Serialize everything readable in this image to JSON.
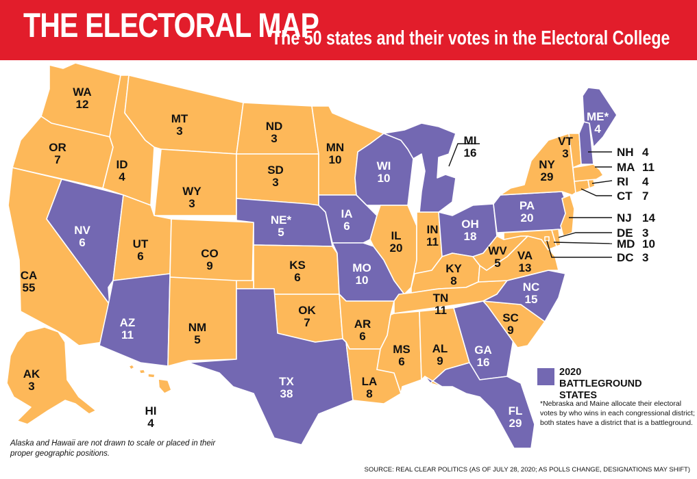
{
  "header": {
    "title": "THE ELECTORAL MAP",
    "subtitle": "The 50 states and their votes in the Electoral College"
  },
  "colors": {
    "header_bg": "#e21d2b",
    "safe_state": "#fdb859",
    "battleground": "#7368b2",
    "border": "#ffffff"
  },
  "legend": {
    "label": "2020 BATTLEGROUND STATES"
  },
  "footnote": "*Nebraska and Maine allocate their electoral votes by who wins in each congressional district; both states have a district that is a battleground.",
  "scale_note": "Alaska and Hawaii are not drawn to scale or placed in their proper geographic positions.",
  "source": "SOURCE: REAL CLEAR POLITICS (AS OF JULY 28, 2020; AS POLLS CHANGE, DESIGNATIONS MAY SHIFT)",
  "states": {
    "WA": {
      "abbr": "WA",
      "votes": "12",
      "battleground": false
    },
    "OR": {
      "abbr": "OR",
      "votes": "7",
      "battleground": false
    },
    "CA": {
      "abbr": "CA",
      "votes": "55",
      "battleground": false
    },
    "NV": {
      "abbr": "NV",
      "votes": "6",
      "battleground": true
    },
    "ID": {
      "abbr": "ID",
      "votes": "4",
      "battleground": false
    },
    "MT": {
      "abbr": "MT",
      "votes": "3",
      "battleground": false
    },
    "WY": {
      "abbr": "WY",
      "votes": "3",
      "battleground": false
    },
    "UT": {
      "abbr": "UT",
      "votes": "6",
      "battleground": false
    },
    "CO": {
      "abbr": "CO",
      "votes": "9",
      "battleground": false
    },
    "AZ": {
      "abbr": "AZ",
      "votes": "11",
      "battleground": true
    },
    "NM": {
      "abbr": "NM",
      "votes": "5",
      "battleground": false
    },
    "ND": {
      "abbr": "ND",
      "votes": "3",
      "battleground": false
    },
    "SD": {
      "abbr": "SD",
      "votes": "3",
      "battleground": false
    },
    "NE": {
      "abbr": "NE*",
      "votes": "5",
      "battleground": true
    },
    "KS": {
      "abbr": "KS",
      "votes": "6",
      "battleground": false
    },
    "OK": {
      "abbr": "OK",
      "votes": "7",
      "battleground": false
    },
    "TX": {
      "abbr": "TX",
      "votes": "38",
      "battleground": true
    },
    "MN": {
      "abbr": "MN",
      "votes": "10",
      "battleground": false
    },
    "IA": {
      "abbr": "IA",
      "votes": "6",
      "battleground": true
    },
    "MO": {
      "abbr": "MO",
      "votes": "10",
      "battleground": true
    },
    "AR": {
      "abbr": "AR",
      "votes": "6",
      "battleground": false
    },
    "LA": {
      "abbr": "LA",
      "votes": "8",
      "battleground": false
    },
    "WI": {
      "abbr": "WI",
      "votes": "10",
      "battleground": true
    },
    "IL": {
      "abbr": "IL",
      "votes": "20",
      "battleground": false
    },
    "MI": {
      "abbr": "MI",
      "votes": "16",
      "battleground": true
    },
    "IN": {
      "abbr": "IN",
      "votes": "11",
      "battleground": false
    },
    "OH": {
      "abbr": "OH",
      "votes": "18",
      "battleground": true
    },
    "KY": {
      "abbr": "KY",
      "votes": "8",
      "battleground": false
    },
    "TN": {
      "abbr": "TN",
      "votes": "11",
      "battleground": false
    },
    "MS": {
      "abbr": "MS",
      "votes": "6",
      "battleground": false
    },
    "AL": {
      "abbr": "AL",
      "votes": "9",
      "battleground": false
    },
    "GA": {
      "abbr": "GA",
      "votes": "16",
      "battleground": true
    },
    "FL": {
      "abbr": "FL",
      "votes": "29",
      "battleground": true
    },
    "SC": {
      "abbr": "SC",
      "votes": "9",
      "battleground": false
    },
    "NC": {
      "abbr": "NC",
      "votes": "15",
      "battleground": true
    },
    "VA": {
      "abbr": "VA",
      "votes": "13",
      "battleground": false
    },
    "WV": {
      "abbr": "WV",
      "votes": "5",
      "battleground": false
    },
    "PA": {
      "abbr": "PA",
      "votes": "20",
      "battleground": true
    },
    "NY": {
      "abbr": "NY",
      "votes": "29",
      "battleground": false
    },
    "VT": {
      "abbr": "VT",
      "votes": "3",
      "battleground": false
    },
    "ME": {
      "abbr": "ME*",
      "votes": "4",
      "battleground": true
    },
    "NH": {
      "abbr": "NH",
      "votes": "4",
      "battleground": true
    },
    "MA": {
      "abbr": "MA",
      "votes": "11",
      "battleground": false
    },
    "RI": {
      "abbr": "RI",
      "votes": "4",
      "battleground": false
    },
    "CT": {
      "abbr": "CT",
      "votes": "7",
      "battleground": false
    },
    "NJ": {
      "abbr": "NJ",
      "votes": "14",
      "battleground": false
    },
    "DE": {
      "abbr": "DE",
      "votes": "3",
      "battleground": false
    },
    "MD": {
      "abbr": "MD",
      "votes": "10",
      "battleground": false
    },
    "DC": {
      "abbr": "DC",
      "votes": "3",
      "battleground": false
    },
    "AK": {
      "abbr": "AK",
      "votes": "3",
      "battleground": false
    },
    "HI": {
      "abbr": "HI",
      "votes": "4",
      "battleground": false
    }
  }
}
